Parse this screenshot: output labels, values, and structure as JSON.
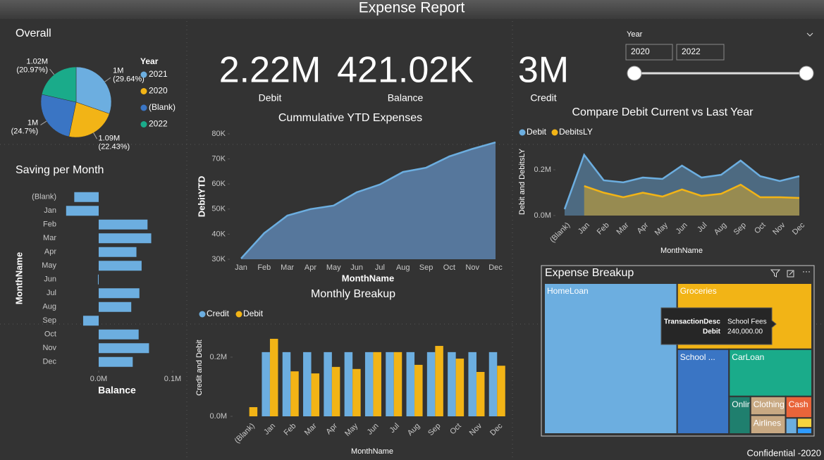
{
  "header": {
    "title": "Expense Report"
  },
  "footer": "Confidential -2020",
  "kpis": [
    {
      "value": "2.22M",
      "label": "Debit"
    },
    {
      "value": "421.02K",
      "label": "Balance"
    },
    {
      "value": "3M",
      "label": "Credit"
    }
  ],
  "slicer": {
    "title": "Year",
    "from": "2020",
    "to": "2022"
  },
  "chart_data": [
    {
      "type": "pie",
      "title": "Overall",
      "legend_title": "Year",
      "categories": [
        "2021",
        "2020",
        "(Blank)",
        "2022"
      ],
      "values": [
        29.64,
        22.43,
        24.7,
        20.97
      ],
      "value_labels": [
        "(29.64%)",
        "(22.43%)",
        "(24.7%)",
        "(20.97%)"
      ],
      "amount_labels": [
        "1M",
        "1.09M",
        "1M",
        "1.02M"
      ],
      "colors": [
        "#6CAEE0",
        "#F2B416",
        "#3A75C4",
        "#1AAB8A"
      ]
    },
    {
      "type": "bar",
      "orientation": "horizontal",
      "title": "Saving per Month",
      "categories": [
        "(Blank)",
        "Jan",
        "Feb",
        "Mar",
        "Apr",
        "May",
        "Jun",
        "Jul",
        "Aug",
        "Sep",
        "Oct",
        "Nov",
        "Dec"
      ],
      "values": [
        -0.033,
        -0.044,
        0.066,
        0.071,
        0.051,
        0.058,
        -0.001,
        0.055,
        0.044,
        -0.021,
        0.054,
        0.068,
        0.046
      ],
      "xlim": [
        -0.05,
        0.1
      ],
      "xticks": [
        {
          "value": 0,
          "label": "0.0M"
        },
        {
          "value": 0.1,
          "label": "0.1M"
        }
      ],
      "x_label": "Balance",
      "y_label": "MonthName",
      "color": "#6CAEE0"
    },
    {
      "type": "area",
      "title": "Cummulative YTD Expenses",
      "categories": [
        "Jan",
        "Feb",
        "Mar",
        "Apr",
        "May",
        "Jun",
        "Jul",
        "Aug",
        "Sep",
        "Oct",
        "Nov",
        "Dec"
      ],
      "values": [
        30300,
        40400,
        47400,
        50000,
        51400,
        56700,
        59800,
        64800,
        66500,
        71000,
        74000,
        76600
      ],
      "ylim": [
        30000,
        80000
      ],
      "yticks": [
        {
          "value": 30000,
          "label": "30K"
        },
        {
          "value": 40000,
          "label": "40K"
        },
        {
          "value": 50000,
          "label": "50K"
        },
        {
          "value": 60000,
          "label": "60K"
        },
        {
          "value": 70000,
          "label": "70K"
        },
        {
          "value": 80000,
          "label": "80K"
        }
      ],
      "x_label": "MonthName",
      "y_label": "DebitYTD",
      "color": "#6CAEE0"
    },
    {
      "type": "grouped_bar",
      "title": "Monthly Breakup",
      "categories": [
        "(Blank)",
        "Jan",
        "Feb",
        "Mar",
        "Apr",
        "May",
        "Jun",
        "Jul",
        "Aug",
        "Sep",
        "Oct",
        "Nov",
        "Dec"
      ],
      "series": [
        {
          "name": "Credit",
          "color": "#6CAEE0",
          "values": [
            null,
            0.217,
            0.217,
            0.217,
            0.217,
            0.217,
            0.217,
            0.217,
            0.217,
            0.217,
            0.217,
            0.217,
            0.217
          ]
        },
        {
          "name": "Debit",
          "color": "#F2B416",
          "values": [
            0.031,
            0.262,
            0.152,
            0.145,
            0.167,
            0.16,
            0.217,
            0.217,
            0.174,
            0.238,
            0.195,
            0.15,
            0.171
          ]
        }
      ],
      "ylim": [
        0,
        0.28
      ],
      "yticks": [
        {
          "value": 0,
          "label": "0.0M"
        },
        {
          "value": 0.2,
          "label": "0.2M"
        }
      ],
      "x_label": "MonthName",
      "y_label": "Credit and Debit"
    },
    {
      "type": "area_line",
      "title": "Compare Debit Current vs Last Year",
      "categories": [
        "(Blank)",
        "Jan",
        "Feb",
        "Mar",
        "Apr",
        "May",
        "Jun",
        "Jul",
        "Aug",
        "Sep",
        "Oct",
        "Nov",
        "Dec"
      ],
      "series": [
        {
          "name": "Debit",
          "color": "#6CAEE0",
          "values": [
            0.028,
            0.265,
            0.154,
            0.145,
            0.166,
            0.16,
            0.218,
            0.166,
            0.178,
            0.24,
            0.172,
            0.151,
            0.172
          ]
        },
        {
          "name": "DebitsLY",
          "color": "#F2B416",
          "values": [
            null,
            0.129,
            0.1,
            0.08,
            0.1,
            0.083,
            0.114,
            0.086,
            0.095,
            0.135,
            0.08,
            0.08,
            0.077
          ]
        }
      ],
      "ylim": [
        0,
        0.3
      ],
      "yticks": [
        {
          "value": 0,
          "label": "0.0M"
        },
        {
          "value": 0.2,
          "label": "0.2M"
        }
      ],
      "x_label": "MonthName",
      "y_label": "Debit and DebitsLY"
    },
    {
      "type": "treemap",
      "title": "Expense Breakup",
      "categories": [
        "HomeLoan",
        "Groceries",
        "School ...",
        "CarLoan",
        "Online",
        "Clothing",
        "Airlines",
        "Cash",
        null,
        null,
        null
      ],
      "values": [
        1096000,
        487000,
        240000,
        214000,
        44000,
        36000,
        36000,
        31000,
        10000,
        8000,
        5000
      ],
      "colors": [
        "#6CAEE0",
        "#F2B416",
        "#3A75C4",
        "#1AAB8A",
        "#1F7F6E",
        "#C8A983",
        "#C8A983",
        "#E9643A",
        "#6CAEE0",
        "#F5D33F",
        "#2E9BFF"
      ],
      "tooltip": {
        "fields": [
          "TransactionDesc",
          "Debit"
        ],
        "values": [
          "School Fees",
          "240,000.00"
        ]
      }
    }
  ]
}
